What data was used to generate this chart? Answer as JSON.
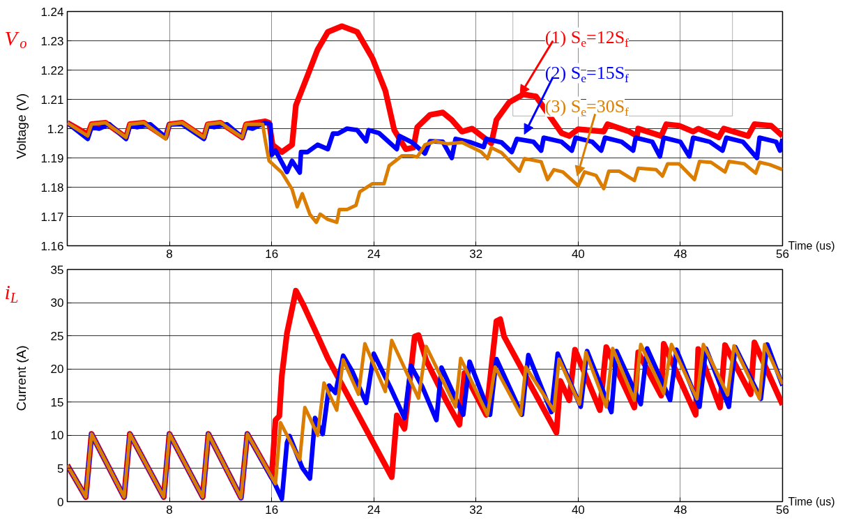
{
  "chart_data": [
    {
      "type": "line",
      "title": "V$_{o}$",
      "ylabel": "Voltage (V)",
      "xlabel": "Time (us)",
      "xlim": [
        0,
        56
      ],
      "xticks": [
        8,
        16,
        24,
        32,
        40,
        48,
        56
      ],
      "ylim": [
        1.16,
        1.24
      ],
      "yticks": [
        1.16,
        1.17,
        1.18,
        1.19,
        1.2,
        1.21,
        1.22,
        1.23,
        1.24
      ],
      "grid": true,
      "legend": "top right",
      "series": [
        {
          "name": "(1) S$_{e}$=12S$_{f}$",
          "color": "#ff0000",
          "x": [
            0,
            1.6,
            1.9,
            3,
            4.6,
            4.9,
            6,
            7.7,
            8,
            9,
            10.7,
            11,
            12,
            13.7,
            14,
            15.5,
            15.8,
            16.07,
            16.8,
            17.6,
            17.9,
            18.8,
            19.6,
            20.4,
            21.5,
            22.7,
            23.9,
            24.9,
            25.6,
            26.5,
            27.1,
            27.4,
            28.4,
            29.4,
            30.1,
            30.9,
            31.7,
            33.2,
            33.6,
            34.6,
            35.7,
            36.7,
            37.9,
            38.7,
            39.3,
            40,
            42,
            42.3,
            44,
            44.6,
            44.7,
            46.5,
            46.9,
            47.9,
            49,
            49.4,
            51,
            51.4,
            53.3,
            53.8,
            55.1,
            56
          ],
          "values": [
            1.202,
            1.198,
            1.2015,
            1.202,
            1.197,
            1.2015,
            1.202,
            1.197,
            1.2015,
            1.202,
            1.197,
            1.2015,
            1.202,
            1.197,
            1.2015,
            1.2025,
            1.202,
            1.1945,
            1.192,
            1.1945,
            1.208,
            1.218,
            1.227,
            1.233,
            1.235,
            1.233,
            1.224,
            1.213,
            1.1995,
            1.193,
            1.1935,
            1.2005,
            1.2047,
            1.2055,
            1.203,
            1.199,
            1.2,
            1.195,
            1.203,
            1.209,
            1.2117,
            1.211,
            1.2035,
            1.1985,
            1.1975,
            1.1998,
            1.199,
            1.2015,
            1.199,
            1.1975,
            1.2,
            1.1975,
            1.2015,
            1.201,
            1.199,
            1.2,
            1.197,
            1.2,
            1.1975,
            1.2015,
            1.201,
            1.1975
          ]
        },
        {
          "name": "(2) S$_{e}$=15S$_{f}$",
          "color": "#0000ff",
          "x": [
            0,
            1.6,
            1.9,
            2.5,
            3.3,
            4.6,
            4.9,
            5.5,
            6.5,
            7.7,
            8,
            9,
            10.7,
            11,
            11.5,
            12.5,
            13.7,
            14,
            14.5,
            15.5,
            15.9,
            16,
            16.3,
            17.2,
            17.6,
            18.2,
            18.3,
            18.8,
            19.6,
            20.4,
            20.8,
            21.2,
            21.9,
            22.7,
            23.4,
            23.6,
            24.4,
            25.8,
            26,
            27,
            28,
            28.4,
            29.4,
            30.1,
            30.4,
            31.6,
            32.6,
            32.8,
            34,
            34.8,
            35.2,
            36.5,
            37.1,
            37.3,
            38.7,
            39.5,
            39.8,
            41.1,
            41.8,
            42.1,
            43.4,
            44.3,
            44.5,
            45.8,
            46.4,
            46.7,
            48,
            48.7,
            49,
            50.3,
            51.3,
            51.6,
            52.9,
            54,
            54.2,
            55.5,
            55.8,
            56
          ],
          "values": [
            1.202,
            1.1965,
            1.2005,
            1.2,
            1.2015,
            1.1965,
            1.201,
            1.2005,
            1.2015,
            1.197,
            1.2015,
            1.2015,
            1.1965,
            1.201,
            1.2005,
            1.2015,
            1.197,
            1.2005,
            1.2,
            1.202,
            1.2015,
            1.191,
            1.1925,
            1.1852,
            1.189,
            1.185,
            1.192,
            1.192,
            1.1945,
            1.193,
            1.1983,
            1.1983,
            1.2,
            1.1995,
            1.1957,
            1.1995,
            1.1985,
            1.193,
            1.1975,
            1.1953,
            1.1915,
            1.1957,
            1.1955,
            1.19,
            1.1965,
            1.1953,
            1.1937,
            1.1965,
            1.1953,
            1.192,
            1.1965,
            1.1955,
            1.1925,
            1.1969,
            1.1955,
            1.1925,
            1.1969,
            1.1955,
            1.1925,
            1.1969,
            1.1955,
            1.1925,
            1.1969,
            1.1955,
            1.1905,
            1.1969,
            1.1955,
            1.1905,
            1.1969,
            1.1955,
            1.1925,
            1.1969,
            1.1955,
            1.19,
            1.1969,
            1.1955,
            1.1925,
            1.1965
          ]
        },
        {
          "name": "(3) S$_{e}$=30S$_{f}$",
          "color": "#db7d00",
          "x": [
            0,
            1.6,
            1.9,
            3,
            4.6,
            4.9,
            6,
            7.7,
            8,
            9,
            10.7,
            11,
            12,
            13.7,
            14,
            15.3,
            15.5,
            15.8,
            16.3,
            16.8,
            17.6,
            18,
            18.4,
            19,
            19.5,
            19.8,
            20.4,
            21.1,
            21.3,
            21.9,
            22.6,
            22.9,
            23.9,
            24.8,
            25.2,
            26.2,
            27,
            27.4,
            28,
            28.8,
            29.8,
            30.9,
            32.4,
            32.9,
            33.2,
            34,
            35.4,
            35.8,
            37.1,
            37.6,
            38.1,
            38.8,
            40,
            40.5,
            41.4,
            42,
            42.4,
            43.2,
            44.4,
            44.7,
            46.1,
            46.6,
            47,
            47.9,
            49.1,
            49.5,
            50.4,
            51.5,
            51.8,
            53,
            53.9,
            54.2,
            55,
            56
          ],
          "values": [
            1.202,
            1.1975,
            1.2015,
            1.202,
            1.197,
            1.2015,
            1.202,
            1.1965,
            1.2015,
            1.202,
            1.197,
            1.2015,
            1.202,
            1.197,
            1.2015,
            1.2015,
            1.196,
            1.189,
            1.187,
            1.185,
            1.1793,
            1.1733,
            1.1778,
            1.1707,
            1.168,
            1.1708,
            1.169,
            1.168,
            1.1724,
            1.1724,
            1.1738,
            1.1784,
            1.1812,
            1.1812,
            1.1873,
            1.1907,
            1.1907,
            1.1903,
            1.1945,
            1.1957,
            1.1948,
            1.1953,
            1.1921,
            1.1898,
            1.1935,
            1.1918,
            1.1855,
            1.1898,
            1.1887,
            1.1826,
            1.186,
            1.1852,
            1.1805,
            1.1852,
            1.184,
            1.1795,
            1.1855,
            1.1855,
            1.1823,
            1.1865,
            1.186,
            1.1838,
            1.188,
            1.188,
            1.1826,
            1.1888,
            1.1885,
            1.1852,
            1.1888,
            1.188,
            1.1848,
            1.1885,
            1.1877,
            1.186
          ]
        }
      ]
    },
    {
      "type": "line",
      "title": "i$_{L}$",
      "ylabel": "Current (A)",
      "xlabel": "Time (us)",
      "xlim": [
        0,
        56
      ],
      "xticks": [
        8,
        16,
        24,
        32,
        40,
        48,
        56
      ],
      "ylim": [
        0,
        35
      ],
      "yticks": [
        0,
        5,
        10,
        15,
        20,
        25,
        30,
        35
      ],
      "grid": true,
      "series": [
        {
          "color": "#ff0000",
          "x": [
            0,
            1.45,
            1.9,
            4.45,
            4.9,
            7.55,
            8,
            10.6,
            11.05,
            13.6,
            14.1,
            16,
            16.3,
            16.6,
            16.8,
            17.2,
            17.9,
            18.5,
            19.6,
            20.4,
            25.4,
            25.8,
            26.4,
            27.2,
            27.5,
            28.1,
            29.7,
            30.7,
            31.1,
            32.8,
            33.6,
            33.9,
            34.2,
            38.3,
            38.6,
            39.3,
            39.75,
            41.7,
            42.2,
            44.4,
            44.7,
            46.5,
            46.7,
            49.2,
            49.4,
            51.1,
            51.5,
            53.5,
            53.8,
            56
          ],
          "values": [
            5.5,
            0.7,
            10.2,
            0.7,
            10.2,
            0.7,
            10.2,
            0.7,
            10.2,
            0.6,
            10.2,
            3.7,
            12.3,
            12.9,
            19,
            25.4,
            31.8,
            29.6,
            25,
            21.6,
            3.7,
            13,
            11,
            24.9,
            25.1,
            21.3,
            15.1,
            11.6,
            19.4,
            13.1,
            27.2,
            27.5,
            24.9,
            10.4,
            18.2,
            15.3,
            22.9,
            13.8,
            23.3,
            14.2,
            22.5,
            16,
            23.8,
            13.1,
            23,
            14.2,
            23.6,
            16.2,
            24,
            14.6
          ]
        },
        {
          "color": "#0000ff",
          "x": [
            0,
            1.45,
            1.9,
            4.45,
            4.9,
            7.55,
            8,
            10.6,
            11.05,
            13.6,
            14.1,
            16.2,
            16.8,
            17.2,
            17.4,
            18.4,
            19,
            19.4,
            20,
            20.5,
            21,
            21.6,
            22.3,
            23.4,
            24,
            25.3,
            26.4,
            26.9,
            27.8,
            28.9,
            29.3,
            31,
            31.5,
            33.1,
            33.6,
            35.6,
            36.1,
            37.9,
            38.4,
            40.2,
            40.7,
            42.6,
            43,
            44.9,
            45.4,
            47.2,
            47.7,
            49.5,
            50,
            51.8,
            52.3,
            54.3,
            54.8,
            56
          ],
          "values": [
            5.5,
            0.7,
            10.2,
            0.7,
            10.2,
            0.7,
            10.2,
            0.7,
            10.2,
            0.6,
            10.2,
            2.9,
            0.4,
            8.9,
            9.9,
            5.1,
            3.5,
            12.6,
            10.2,
            17.5,
            16.4,
            22,
            19.7,
            14.9,
            22.3,
            17.2,
            12.6,
            20.5,
            17.3,
            12.3,
            20.2,
            13.1,
            21.1,
            13.1,
            21.5,
            13.1,
            22.1,
            13.5,
            22.3,
            14.3,
            22.7,
            13.5,
            22.7,
            14.7,
            23.1,
            15.3,
            22.9,
            14.3,
            23.1,
            14.3,
            23.3,
            15.5,
            23.7,
            17.5
          ]
        },
        {
          "color": "#db7d00",
          "x": [
            0,
            1.45,
            1.9,
            4.45,
            4.9,
            7.55,
            8,
            10.6,
            11.05,
            13.6,
            14.1,
            16.3,
            16.7,
            18.2,
            18.6,
            19,
            19.6,
            20.1,
            21.1,
            21.6,
            22.8,
            23.3,
            24.9,
            25.4,
            27.5,
            28.1,
            30.4,
            30.8,
            32.9,
            33.5,
            35.5,
            35.9,
            38.1,
            38.5,
            40.1,
            40.6,
            42.2,
            42.7,
            44.4,
            44.9,
            46.7,
            47.3,
            49.3,
            49.8,
            51.7,
            52.2,
            54.2,
            54.6,
            56
          ],
          "values": [
            5.5,
            0.7,
            10.2,
            0.7,
            10.2,
            0.7,
            10.2,
            0.7,
            10.2,
            0.6,
            10.2,
            2.7,
            11.9,
            6.3,
            14.2,
            12.6,
            10,
            17.9,
            13.8,
            21.4,
            16.2,
            23.8,
            16.6,
            24.3,
            15.6,
            23.4,
            14.3,
            21.6,
            13.1,
            20.3,
            13.1,
            20.3,
            13.7,
            21.5,
            14.7,
            22.5,
            14.3,
            23.1,
            15.3,
            23.7,
            16.3,
            23.7,
            15.5,
            23.7,
            16.1,
            23.5,
            15.5,
            23.7,
            17.7
          ]
        }
      ]
    }
  ]
}
